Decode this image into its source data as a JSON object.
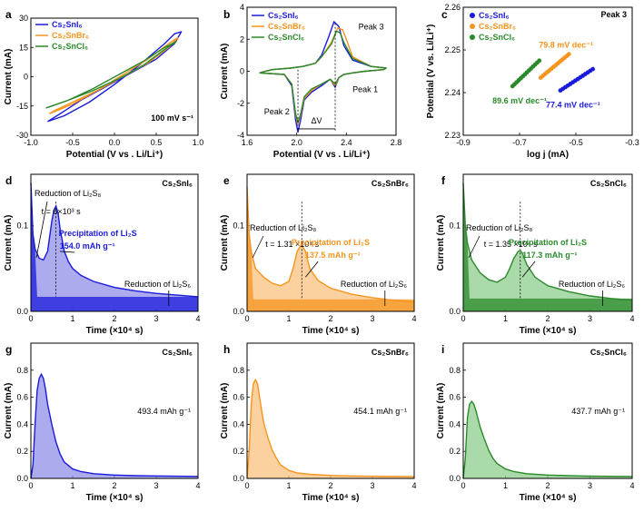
{
  "colors": {
    "sni": "#1a1adc",
    "snbr": "#f7941d",
    "sncl": "#2a8a2a",
    "sni_fill": "#8f8fe8",
    "snbr_fill": "#f9c37f",
    "sncl_fill": "#8ecc8e"
  },
  "chart_data": [
    {
      "id": "a",
      "type": "line",
      "panel_label": "a",
      "xlabel": "Potential (V vs . Li/Li⁺)",
      "ylabel": "Current (mA)",
      "xlim": [
        -1.0,
        1.0
      ],
      "ylim": [
        -30,
        30
      ],
      "xticks": [
        -1.0,
        -0.5,
        0.0,
        0.5,
        1.0
      ],
      "yticks": [
        -30,
        -15,
        0,
        15,
        30
      ],
      "annotation": "100 mV s⁻¹",
      "legend": [
        "Cs₂SnI₆",
        "Cs₂SnBr₆",
        "Cs₂SnCl₆"
      ],
      "series": [
        {
          "name": "Cs₂SnI₆",
          "color_key": "sni",
          "x": [
            -0.8,
            -0.6,
            -0.3,
            0.0,
            0.3,
            0.6,
            0.72,
            0.8,
            0.72,
            0.5,
            0.2,
            -0.1,
            -0.4,
            -0.65,
            -0.8
          ],
          "y": [
            -23,
            -20,
            -13,
            -4,
            6,
            17,
            22,
            23,
            17,
            9,
            2,
            -5,
            -12,
            -19,
            -23
          ]
        },
        {
          "name": "Cs₂SnBr₆",
          "color_key": "snbr",
          "x": [
            -0.78,
            -0.5,
            -0.2,
            0.1,
            0.4,
            0.65,
            0.76,
            0.65,
            0.4,
            0.1,
            -0.2,
            -0.5,
            -0.7,
            -0.78
          ],
          "y": [
            -19,
            -14,
            -7,
            1,
            9,
            17,
            20,
            15,
            7,
            0,
            -7,
            -13,
            -17,
            -19
          ]
        },
        {
          "name": "Cs₂SnCl₆",
          "color_key": "sncl",
          "x": [
            -0.82,
            -0.55,
            -0.25,
            0.05,
            0.35,
            0.6,
            0.74,
            0.6,
            0.35,
            0.05,
            -0.25,
            -0.55,
            -0.75,
            -0.82
          ],
          "y": [
            -16,
            -12,
            -6,
            1,
            8,
            15,
            18,
            14,
            6,
            -1,
            -7,
            -12,
            -15,
            -16
          ]
        }
      ]
    },
    {
      "id": "b",
      "type": "line",
      "panel_label": "b",
      "xlabel": "Potential (V vs . Li/Li⁺)",
      "ylabel": "Current (mA)",
      "xlim": [
        1.6,
        2.8
      ],
      "ylim": [
        -4,
        4
      ],
      "xticks": [
        1.6,
        2.0,
        2.4,
        2.8
      ],
      "yticks": [
        -4,
        -2,
        0,
        2,
        4
      ],
      "legend": [
        "Cs₂SnI₆",
        "Cs₂SnBr₆",
        "Cs₂SnCl₆"
      ],
      "annotations": [
        "Peak 3",
        "Peak 1",
        "Peak 2",
        "ΔV"
      ],
      "series": [
        {
          "name": "Cs₂SnI₆",
          "color_key": "sni",
          "x": [
            1.7,
            1.9,
            1.96,
            1.99,
            2.01,
            2.03,
            2.06,
            2.12,
            2.2,
            2.27,
            2.31,
            2.34,
            2.38,
            2.45,
            2.55,
            2.7,
            2.72,
            2.6,
            2.45,
            2.38,
            2.34,
            2.3,
            2.26,
            2.2,
            2.15,
            2.05,
            1.95,
            1.8,
            1.7
          ],
          "y": [
            -0.1,
            -0.2,
            -0.9,
            -3.0,
            -3.8,
            -3.1,
            -1.8,
            -1.3,
            -0.9,
            -0.5,
            -1.0,
            -0.4,
            -0.2,
            -0.1,
            0.0,
            0.1,
            0.2,
            0.3,
            0.7,
            1.6,
            2.8,
            3.1,
            2.2,
            1.0,
            0.5,
            0.3,
            0.2,
            0.1,
            -0.1
          ]
        },
        {
          "name": "Cs₂SnBr₆",
          "color_key": "snbr",
          "x": [
            1.7,
            1.9,
            1.96,
            1.99,
            2.01,
            2.03,
            2.06,
            2.12,
            2.2,
            2.27,
            2.31,
            2.34,
            2.38,
            2.45,
            2.55,
            2.7,
            2.72,
            2.6,
            2.45,
            2.4,
            2.37,
            2.33,
            2.28,
            2.2,
            2.15,
            2.05,
            1.95,
            1.8,
            1.7
          ],
          "y": [
            -0.1,
            -0.2,
            -0.8,
            -2.7,
            -3.3,
            -2.8,
            -1.7,
            -1.2,
            -0.8,
            -0.5,
            -0.9,
            -0.4,
            -0.2,
            -0.1,
            0.0,
            0.1,
            0.2,
            0.3,
            0.9,
            2.0,
            2.6,
            2.7,
            1.8,
            0.9,
            0.5,
            0.3,
            0.2,
            0.1,
            -0.1
          ]
        },
        {
          "name": "Cs₂SnCl₆",
          "color_key": "sncl",
          "x": [
            1.7,
            1.9,
            1.96,
            1.99,
            2.01,
            2.03,
            2.06,
            2.12,
            2.2,
            2.27,
            2.31,
            2.34,
            2.38,
            2.45,
            2.55,
            2.7,
            2.72,
            2.6,
            2.45,
            2.38,
            2.35,
            2.32,
            2.28,
            2.2,
            2.15,
            2.05,
            1.95,
            1.8,
            1.7
          ],
          "y": [
            -0.1,
            -0.2,
            -0.8,
            -2.6,
            -3.2,
            -2.7,
            -1.6,
            -1.1,
            -0.8,
            -0.5,
            -0.8,
            -0.4,
            -0.2,
            -0.1,
            0.0,
            0.1,
            0.2,
            0.3,
            0.8,
            1.8,
            2.4,
            2.5,
            1.7,
            0.9,
            0.5,
            0.3,
            0.2,
            0.1,
            -0.1
          ]
        }
      ]
    },
    {
      "id": "c",
      "type": "scatter",
      "panel_label": "c",
      "xlabel": "log j (mA)",
      "ylabel": "Potential (V vs. Li/Li⁺)",
      "xlim": [
        -0.9,
        -0.3
      ],
      "ylim": [
        2.23,
        2.26
      ],
      "xticks": [
        -0.9,
        -0.7,
        -0.5,
        -0.3
      ],
      "yticks": [
        2.23,
        2.24,
        2.25,
        2.26
      ],
      "annotation": "Peak 3",
      "legend": [
        "Cs₂SnI₆",
        "Cs₂SnBr₆",
        "Cs₂SnCl₆"
      ],
      "slope_labels": [
        "77.4 mV dec⁻¹",
        "79.8 mV dec⁻¹",
        "89.6 mV dec⁻¹"
      ],
      "series": [
        {
          "name": "Cs₂SnI₆",
          "color_key": "sni",
          "x_start": -0.555,
          "x_end": -0.44,
          "y_start": 2.2405,
          "y_end": 2.2455,
          "n": 14
        },
        {
          "name": "Cs₂SnBr₆",
          "color_key": "snbr",
          "x_start": -0.625,
          "x_end": -0.525,
          "y_start": 2.2435,
          "y_end": 2.249,
          "n": 14
        },
        {
          "name": "Cs₂SnCl₆",
          "color_key": "sncl",
          "x_start": -0.725,
          "x_end": -0.63,
          "y_start": 2.2415,
          "y_end": 2.2475,
          "n": 14
        }
      ]
    },
    {
      "id": "d",
      "type": "area",
      "panel_label": "d",
      "title": "Cs₂SnI₆",
      "color_key": "sni",
      "xlabel": "Time (×10⁴ s)",
      "ylabel": "Current (mA)",
      "xlim": [
        0,
        4
      ],
      "ylim": [
        0,
        0.16
      ],
      "xticks": [
        0,
        1,
        2,
        3,
        4
      ],
      "yticks": [
        0.0,
        0.1
      ],
      "x": [
        0,
        0.05,
        0.1,
        0.2,
        0.3,
        0.4,
        0.5,
        0.55,
        0.6,
        0.65,
        0.7,
        0.8,
        0.9,
        1.0,
        1.2,
        1.5,
        2.0,
        2.5,
        3.0,
        3.5,
        4.0
      ],
      "y": [
        0.15,
        0.09,
        0.073,
        0.062,
        0.06,
        0.07,
        0.105,
        0.118,
        0.123,
        0.115,
        0.096,
        0.07,
        0.058,
        0.05,
        0.042,
        0.035,
        0.028,
        0.024,
        0.021,
        0.019,
        0.017
      ],
      "split_x": 0.6,
      "base_level": 0.017,
      "annotations": [
        "Reduction of Li₂S₈",
        "t = 6×10³ s",
        "Precipitation of Li₂S",
        "154.0 mAh g⁻¹",
        "Reduction of Li₂S₆"
      ]
    },
    {
      "id": "e",
      "type": "area",
      "panel_label": "e",
      "title": "Cs₂SnBr₆",
      "color_key": "snbr",
      "xlabel": "Time (×10⁴ s)",
      "ylabel": "Current (mA)",
      "xlim": [
        0,
        4
      ],
      "ylim": [
        0,
        0.16
      ],
      "xticks": [
        0,
        1,
        2,
        3,
        4
      ],
      "yticks": [
        0.0,
        0.1
      ],
      "x": [
        0,
        0.05,
        0.1,
        0.2,
        0.4,
        0.6,
        0.8,
        1.0,
        1.1,
        1.2,
        1.3,
        1.4,
        1.5,
        1.7,
        2.0,
        2.5,
        3.0,
        3.5,
        4.0
      ],
      "y": [
        0.145,
        0.09,
        0.07,
        0.05,
        0.04,
        0.033,
        0.03,
        0.035,
        0.05,
        0.07,
        0.078,
        0.07,
        0.05,
        0.036,
        0.027,
        0.02,
        0.016,
        0.013,
        0.011
      ],
      "split_x": 1.31,
      "base_level": 0.014,
      "annotations": [
        "Reduction of Li₂S₈",
        "t = 1.31 ×10⁴ s",
        "Precipitation of Li₂S",
        "137.5 mAh g⁻¹",
        "Reduction of Li₂S₆"
      ]
    },
    {
      "id": "f",
      "type": "area",
      "panel_label": "f",
      "title": "Cs₂SnCl₆",
      "color_key": "sncl",
      "xlabel": "Time (×10⁴ s)",
      "ylabel": "Current (mA)",
      "xlim": [
        0,
        4
      ],
      "ylim": [
        0,
        0.16
      ],
      "xticks": [
        0,
        1,
        2,
        3,
        4
      ],
      "yticks": [
        0.0,
        0.1
      ],
      "x": [
        0,
        0.05,
        0.1,
        0.2,
        0.4,
        0.6,
        0.8,
        1.0,
        1.1,
        1.2,
        1.3,
        1.35,
        1.4,
        1.5,
        1.7,
        2.0,
        2.5,
        3.0,
        3.5,
        4.0
      ],
      "y": [
        0.15,
        0.1,
        0.08,
        0.06,
        0.045,
        0.037,
        0.034,
        0.04,
        0.05,
        0.062,
        0.07,
        0.071,
        0.068,
        0.055,
        0.04,
        0.03,
        0.023,
        0.018,
        0.015,
        0.013
      ],
      "split_x": 1.35,
      "base_level": 0.015,
      "annotations": [
        "Reduction of Li₂S₈",
        "t = 1.35 ×10⁴ s",
        "Precipitation of Li₂S",
        "117.3 mAh g⁻¹",
        "Reduction of Li₂S₆"
      ]
    },
    {
      "id": "g",
      "type": "area",
      "panel_label": "g",
      "title": "Cs₂SnI₆",
      "color_key": "sni",
      "xlabel": "Time (×10⁴ s)",
      "ylabel": "Current (mA)",
      "xlim": [
        0,
        4
      ],
      "ylim": [
        0,
        1.0
      ],
      "xticks": [
        0,
        1,
        2,
        3,
        4
      ],
      "yticks": [
        0.0,
        0.2,
        0.4,
        0.6,
        0.8
      ],
      "annotation": "493.4 mAh g⁻¹",
      "x": [
        0,
        0.05,
        0.1,
        0.15,
        0.2,
        0.25,
        0.3,
        0.35,
        0.4,
        0.5,
        0.6,
        0.7,
        0.8,
        1.0,
        1.2,
        1.5,
        2.0,
        2.5,
        3.0,
        4.0
      ],
      "y": [
        0,
        0.1,
        0.4,
        0.65,
        0.74,
        0.77,
        0.74,
        0.66,
        0.55,
        0.4,
        0.27,
        0.18,
        0.12,
        0.07,
        0.05,
        0.035,
        0.025,
        0.02,
        0.018,
        0.015
      ]
    },
    {
      "id": "h",
      "type": "area",
      "panel_label": "h",
      "title": "Cs₂SnBr₆",
      "color_key": "snbr",
      "xlabel": "Time (×10⁴ s)",
      "ylabel": "Current (mA)",
      "xlim": [
        0,
        4
      ],
      "ylim": [
        0,
        1.0
      ],
      "xticks": [
        0,
        1,
        2,
        3,
        4
      ],
      "yticks": [
        0.0,
        0.2,
        0.4,
        0.6,
        0.8
      ],
      "annotation": "454.1 mAh g⁻¹",
      "x": [
        0,
        0.05,
        0.1,
        0.15,
        0.2,
        0.25,
        0.3,
        0.35,
        0.4,
        0.5,
        0.6,
        0.7,
        0.8,
        1.0,
        1.2,
        1.5,
        2.0,
        2.5,
        3.0,
        4.0
      ],
      "y": [
        0,
        0.2,
        0.55,
        0.7,
        0.73,
        0.7,
        0.6,
        0.5,
        0.41,
        0.3,
        0.21,
        0.15,
        0.1,
        0.06,
        0.04,
        0.03,
        0.022,
        0.018,
        0.016,
        0.014
      ]
    },
    {
      "id": "i",
      "type": "area",
      "panel_label": "i",
      "title": "Cs₂SnCl₆",
      "color_key": "sncl",
      "xlabel": "Time (×10⁴ s)",
      "ylabel": "Current (mA)",
      "xlim": [
        0,
        4
      ],
      "ylim": [
        0,
        1.0
      ],
      "xticks": [
        0,
        1,
        2,
        3,
        4
      ],
      "yticks": [
        0.0,
        0.2,
        0.4,
        0.6,
        0.8
      ],
      "annotation": "437.7 mAh g⁻¹",
      "x": [
        0,
        0.05,
        0.1,
        0.15,
        0.2,
        0.25,
        0.3,
        0.35,
        0.4,
        0.5,
        0.6,
        0.7,
        0.8,
        1.0,
        1.2,
        1.5,
        2.0,
        2.5,
        3.0,
        4.0
      ],
      "y": [
        0,
        0.15,
        0.45,
        0.55,
        0.57,
        0.55,
        0.5,
        0.44,
        0.38,
        0.29,
        0.21,
        0.15,
        0.11,
        0.07,
        0.05,
        0.035,
        0.025,
        0.02,
        0.017,
        0.014
      ]
    }
  ]
}
